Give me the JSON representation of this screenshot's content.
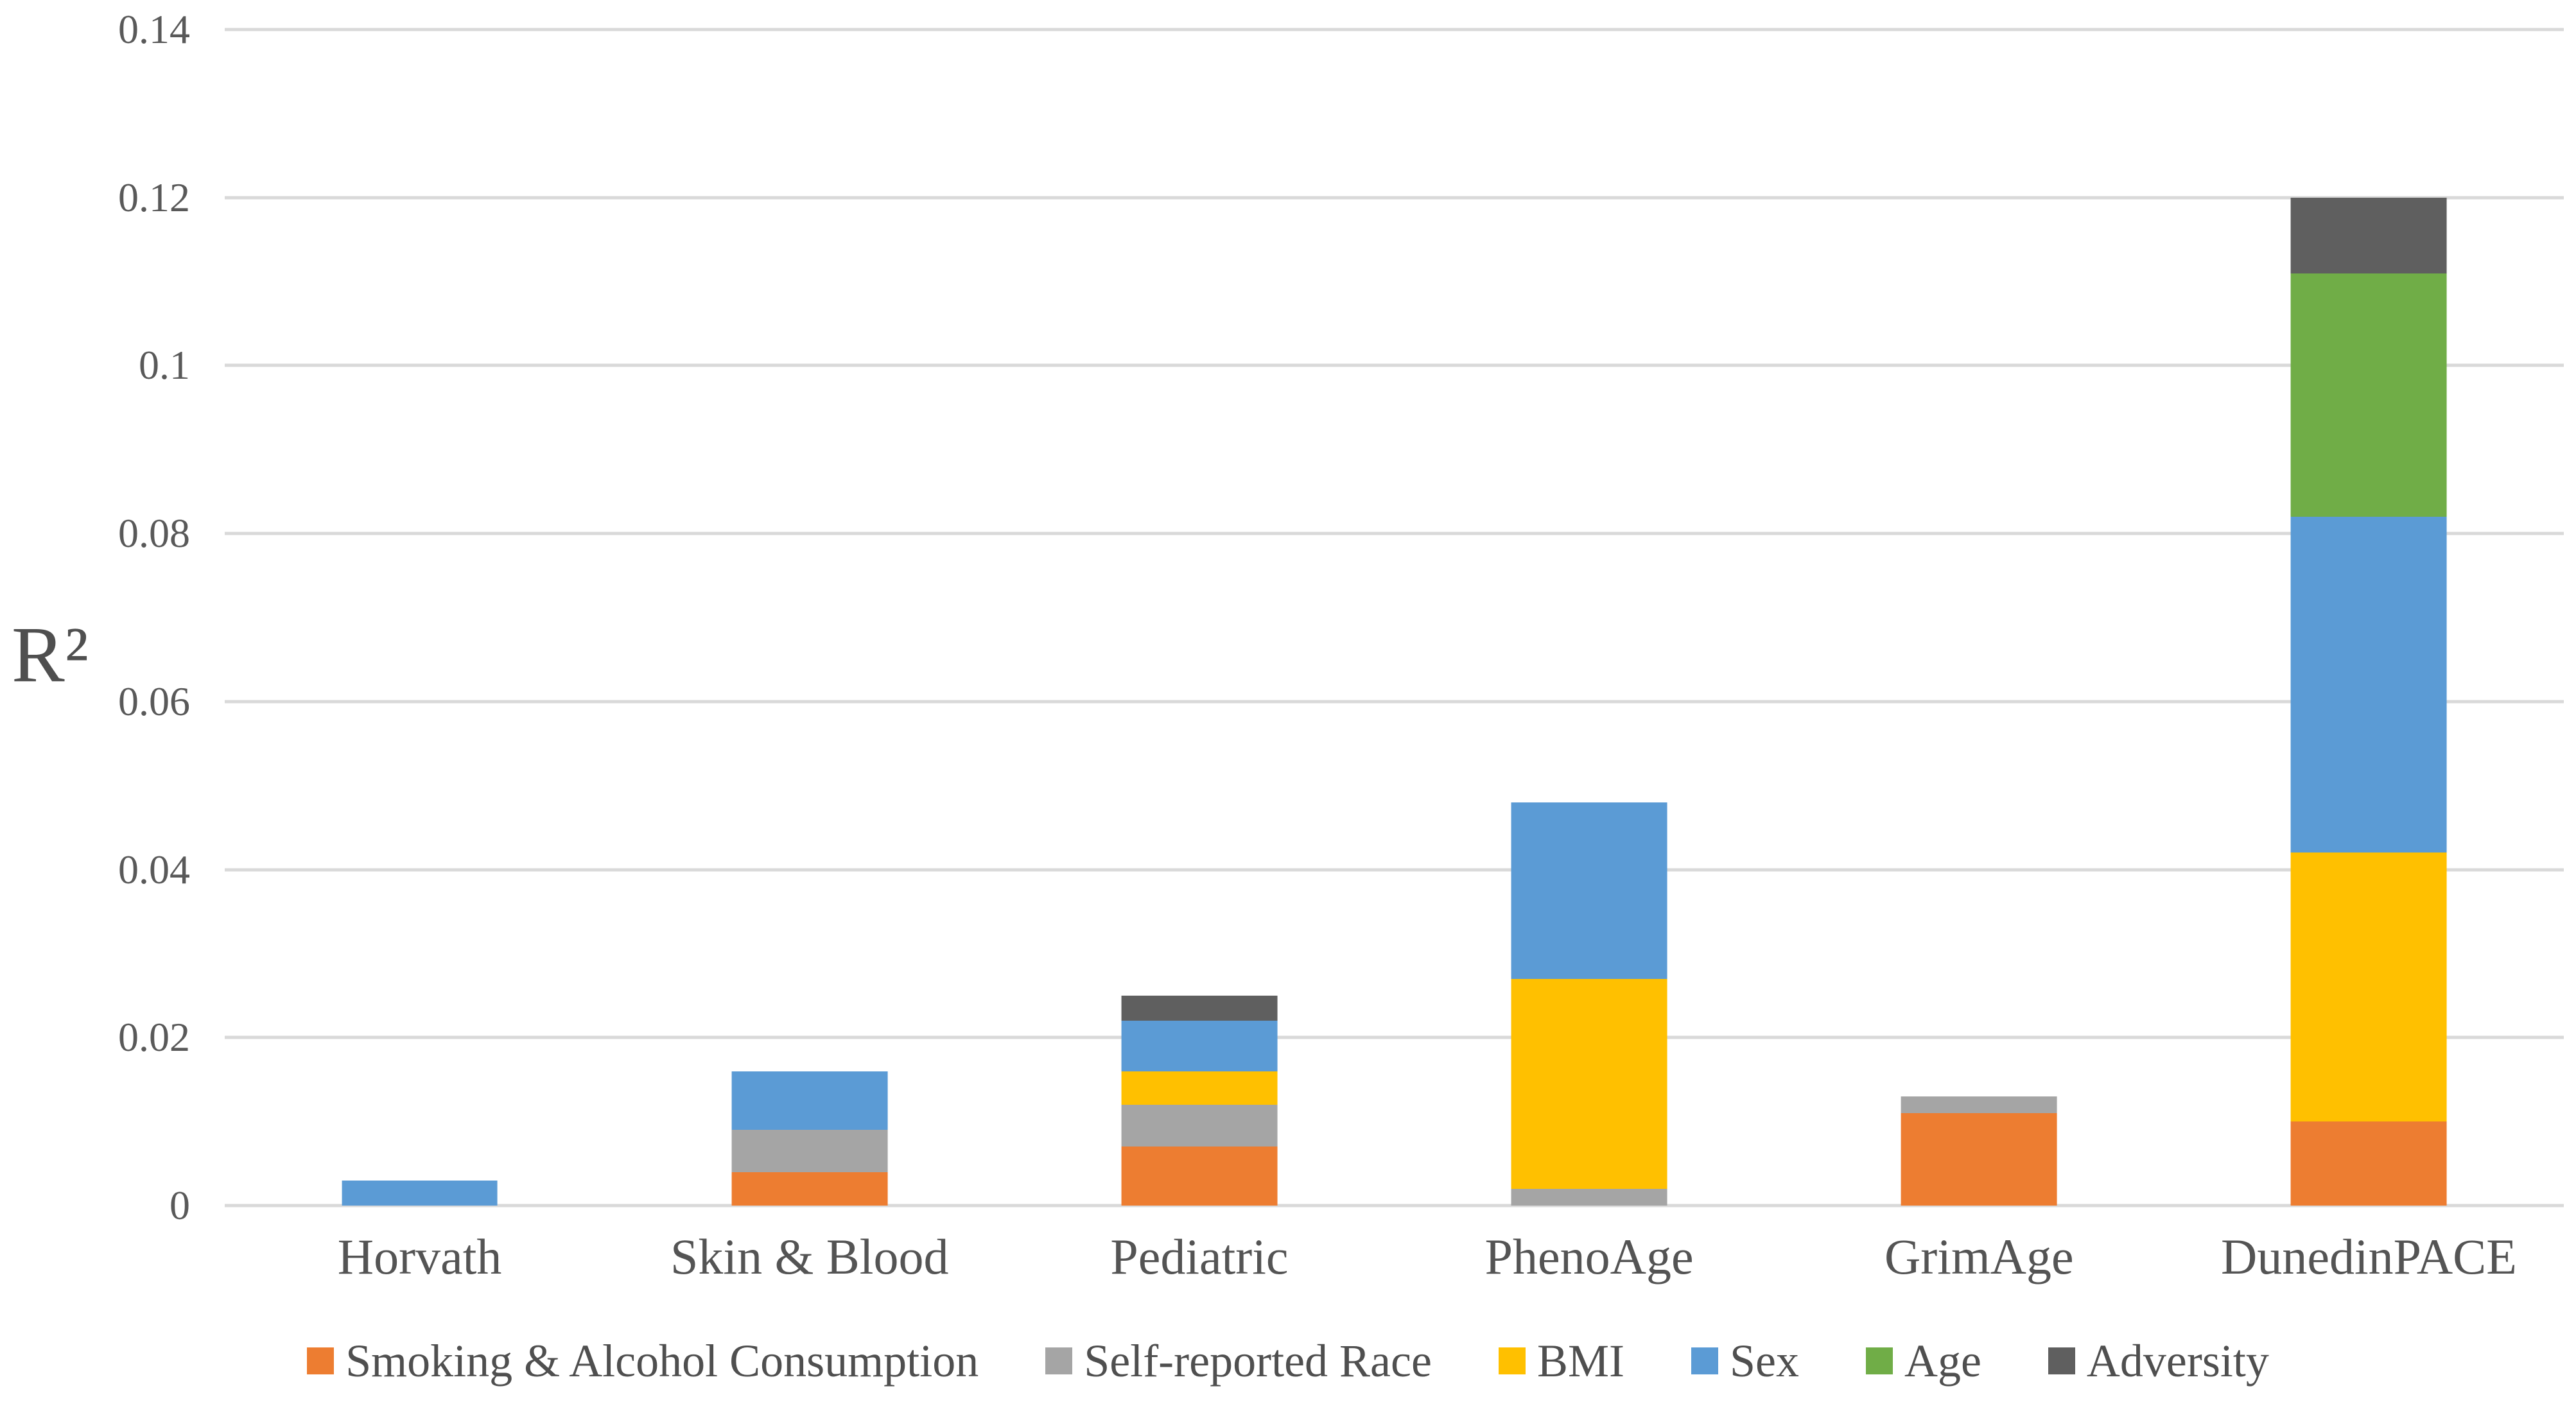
{
  "chart_data": {
    "type": "bar",
    "subtype": "stacked-vertical",
    "title": "",
    "ylabel": "R²",
    "xlabel": "",
    "categories": [
      "Horvath",
      "Skin & Blood",
      "Pediatric",
      "PhenoAge",
      "GrimAge",
      "DunedinPACE"
    ],
    "series": [
      {
        "name": "Smoking & Alcohol Consumption",
        "color": "#ED7D31",
        "values": [
          0,
          0.004,
          0.007,
          0,
          0.011,
          0.01
        ]
      },
      {
        "name": "Self-reported Race",
        "color": "#A5A5A5",
        "values": [
          0,
          0.005,
          0.005,
          0.002,
          0.002,
          0
        ]
      },
      {
        "name": "BMI",
        "color": "#FFC000",
        "values": [
          0,
          0,
          0.004,
          0.025,
          0,
          0.032
        ]
      },
      {
        "name": "Sex",
        "color": "#5B9BD5",
        "values": [
          0.003,
          0.007,
          0.006,
          0.021,
          0,
          0.04
        ]
      },
      {
        "name": "Age",
        "color": "#70AD47",
        "values": [
          0,
          0,
          0,
          0,
          0,
          0.029
        ]
      },
      {
        "name": "Adversity",
        "color": "#5F5F5F",
        "values": [
          0,
          0,
          0.003,
          0,
          0,
          0.009
        ]
      }
    ],
    "stack_totals": [
      0.003,
      0.016,
      0.025,
      0.048,
      0.013,
      0.12
    ],
    "y_axis": {
      "min": 0,
      "max": 0.14,
      "tick_step": 0.02,
      "tick_labels": [
        "0",
        "0.02",
        "0.04",
        "0.06",
        "0.08",
        "0.1",
        "0.12",
        "0.14"
      ]
    },
    "grid": true,
    "legend_position": "bottom"
  },
  "styles": {
    "grid_color": "#D9D9D9",
    "axis_text_color": "#595959",
    "label_text_color": "#545454",
    "background": "#FFFFFF"
  }
}
